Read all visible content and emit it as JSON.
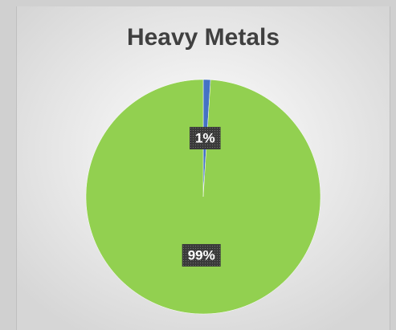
{
  "chart_data": {
    "type": "pie",
    "title": "Heavy Metals",
    "values": [
      1,
      99
    ],
    "value_labels": [
      "1%",
      "99%"
    ],
    "colors": [
      "#4472c4",
      "#92d050"
    ]
  }
}
